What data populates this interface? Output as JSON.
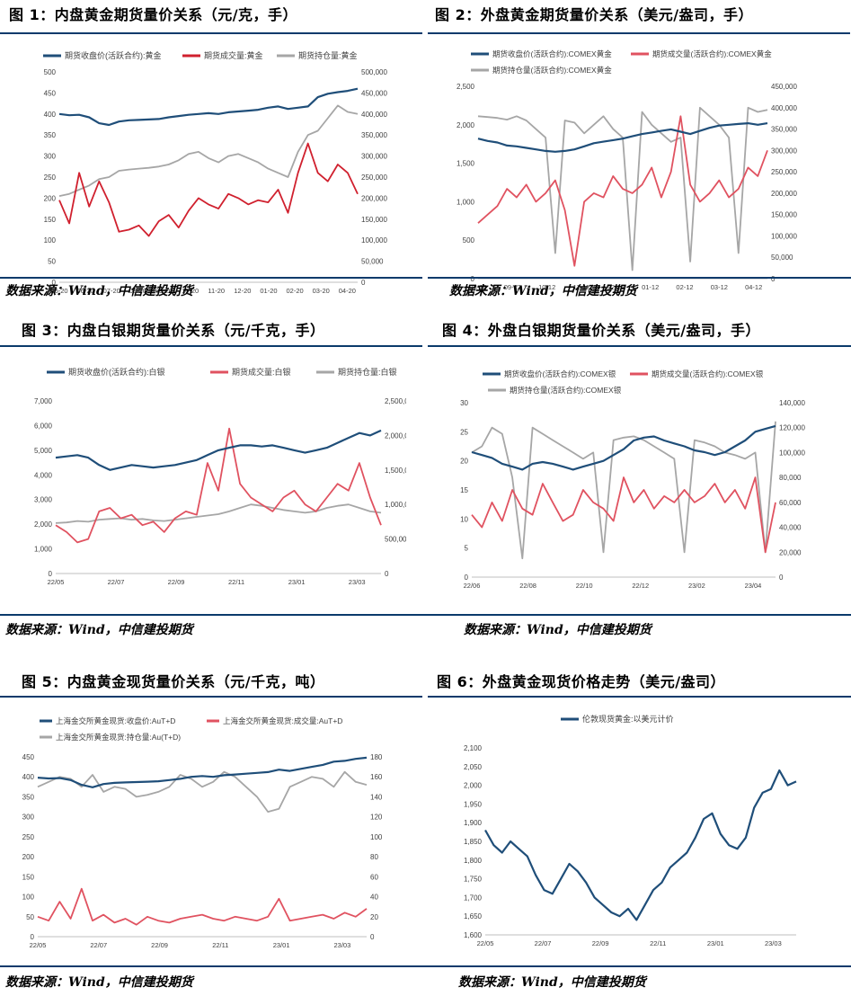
{
  "source_text": "数据来源：Wind，中信建投期货",
  "colors": {
    "navy": "#1f4e79",
    "red": "#d0202e",
    "red2": "#e05260",
    "gray": "#a6a6a6",
    "rule": "#0b3a6b"
  },
  "panels": [
    {
      "title": "图 1：内盘黄金期货量价关系（元/克，手）",
      "chart_data": {
        "type": "line",
        "x_ticks": [
          "05-20",
          "06-20",
          "07-20",
          "08-20",
          "09-20",
          "10-20",
          "11-20",
          "12-20",
          "01-20",
          "02-20",
          "03-20",
          "04-20"
        ],
        "y_left": {
          "min": 0,
          "max": 500,
          "ticks": [
            "0",
            "50",
            "100",
            "150",
            "200",
            "250",
            "300",
            "350",
            "400",
            "450",
            "500"
          ]
        },
        "y_right": {
          "min": 0,
          "max": 500000,
          "ticks": [
            "0",
            "50,000",
            "100,000",
            "150,000",
            "200,000",
            "250,000",
            "300,000",
            "350,000",
            "400,000",
            "450,000",
            "500,000"
          ]
        },
        "series": [
          {
            "name": "期货收盘价(活跃合约):黄金",
            "axis": "left",
            "color": "#1f4e79",
            "values": [
              400,
              397,
              398,
              392,
              378,
              374,
              382,
              385,
              386,
              387,
              388,
              392,
              395,
              398,
              400,
              402,
              400,
              404,
              406,
              408,
              410,
              415,
              418,
              412,
              415,
              418,
              440,
              448,
              452,
              455,
              460
            ]
          },
          {
            "name": "期货成交量:黄金",
            "axis": "right",
            "color": "#d0202e",
            "values": [
              195000,
              140000,
              260000,
              180000,
              240000,
              190000,
              120000,
              125000,
              135000,
              110000,
              145000,
              160000,
              130000,
              170000,
              200000,
              185000,
              175000,
              210000,
              200000,
              185000,
              195000,
              190000,
              220000,
              165000,
              260000,
              330000,
              260000,
              240000,
              280000,
              260000,
              210000
            ]
          },
          {
            "name": "期货持仓量:黄金",
            "axis": "right",
            "color": "#a6a6a6",
            "values": [
              205000,
              210000,
              220000,
              230000,
              245000,
              250000,
              265000,
              268000,
              270000,
              272000,
              275000,
              280000,
              290000,
              305000,
              310000,
              295000,
              285000,
              300000,
              305000,
              295000,
              285000,
              270000,
              260000,
              250000,
              310000,
              350000,
              360000,
              390000,
              420000,
              405000,
              400000
            ]
          }
        ]
      }
    },
    {
      "title": "图 2：外盘黄金期货量价关系（美元/盎司，手）",
      "chart_data": {
        "type": "line",
        "x_ticks": [
          "08-12",
          "09-12",
          "10-12",
          "11-12",
          "12-12",
          "01-12",
          "02-12",
          "03-12",
          "04-12"
        ],
        "y_left": {
          "min": 0,
          "max": 2500,
          "ticks": [
            "0",
            "500",
            "1,000",
            "1,500",
            "2,000",
            "2,500"
          ]
        },
        "y_right": {
          "min": 0,
          "max": 450000,
          "ticks": [
            "0",
            "50,000",
            "100,000",
            "150,000",
            "200,000",
            "250,000",
            "300,000",
            "350,000",
            "400,000",
            "450,000"
          ]
        },
        "series": [
          {
            "name": "期货收盘价(活跃合约):COMEX黄金",
            "axis": "left",
            "color": "#1f4e79",
            "values": [
              1820,
              1790,
              1770,
              1730,
              1720,
              1700,
              1680,
              1660,
              1650,
              1660,
              1680,
              1720,
              1760,
              1780,
              1800,
              1820,
              1850,
              1880,
              1900,
              1920,
              1940,
              1910,
              1880,
              1920,
              1960,
              1990,
              2000,
              2010,
              2020,
              2000,
              2020
            ]
          },
          {
            "name": "期货成交量(活跃合约):COMEX黄金",
            "axis": "right",
            "color": "#e05260",
            "values": [
              130000,
              150000,
              170000,
              210000,
              190000,
              220000,
              180000,
              200000,
              230000,
              160000,
              30000,
              180000,
              200000,
              190000,
              240000,
              210000,
              200000,
              220000,
              260000,
              190000,
              250000,
              380000,
              220000,
              180000,
              200000,
              230000,
              190000,
              210000,
              260000,
              240000,
              300000
            ]
          },
          {
            "name": "期货持仓量(活跃合约):COMEX黄金",
            "axis": "right",
            "color": "#a6a6a6",
            "values": [
              380000,
              378000,
              376000,
              372000,
              380000,
              370000,
              350000,
              330000,
              60000,
              370000,
              365000,
              340000,
              360000,
              380000,
              350000,
              330000,
              20000,
              390000,
              360000,
              340000,
              320000,
              330000,
              40000,
              400000,
              380000,
              360000,
              330000,
              60000,
              400000,
              390000,
              395000
            ]
          }
        ]
      }
    },
    {
      "title": "图 3：内盘白银期货量价关系（元/千克，手）",
      "chart_data": {
        "type": "line",
        "x_ticks": [
          "22/05",
          "22/07",
          "22/09",
          "22/11",
          "23/01",
          "23/03"
        ],
        "y_left": {
          "min": 0,
          "max": 7000,
          "ticks": [
            "0",
            "1,000",
            "2,000",
            "3,000",
            "4,000",
            "5,000",
            "6,000",
            "7,000"
          ]
        },
        "y_right": {
          "min": 0,
          "max": 2500000,
          "ticks": [
            "0",
            "500,000",
            "1,000,000",
            "1,500,000",
            "2,000,000",
            "2,500,000"
          ]
        },
        "series": [
          {
            "name": "期货收盘价(活跃合约):白银",
            "axis": "left",
            "color": "#1f4e79",
            "values": [
              4700,
              4750,
              4800,
              4700,
              4400,
              4200,
              4300,
              4400,
              4350,
              4300,
              4350,
              4400,
              4500,
              4600,
              4800,
              5000,
              5100,
              5200,
              5200,
              5150,
              5200,
              5100,
              5000,
              4900,
              5000,
              5100,
              5300,
              5500,
              5700,
              5600,
              5800
            ]
          },
          {
            "name": "期货成交量:白银",
            "axis": "right",
            "color": "#e05260",
            "values": [
              700000,
              600000,
              450000,
              500000,
              900000,
              950000,
              800000,
              850000,
              700000,
              750000,
              600000,
              800000,
              900000,
              850000,
              1600000,
              1200000,
              2100000,
              1300000,
              1100000,
              1000000,
              900000,
              1100000,
              1200000,
              1000000,
              900000,
              1100000,
              1300000,
              1200000,
              1600000,
              1100000,
              700000
            ]
          },
          {
            "name": "期货持仓量:白银",
            "axis": "right",
            "color": "#a6a6a6",
            "values": [
              730000,
              740000,
              760000,
              750000,
              780000,
              790000,
              800000,
              780000,
              790000,
              770000,
              760000,
              780000,
              800000,
              820000,
              840000,
              860000,
              900000,
              950000,
              1000000,
              980000,
              950000,
              920000,
              900000,
              880000,
              900000,
              950000,
              980000,
              1000000,
              950000,
              900000,
              880000
            ]
          }
        ]
      }
    },
    {
      "title": "图 4：外盘白银期货量价关系（美元/盎司，手）",
      "chart_data": {
        "type": "line",
        "x_ticks": [
          "22/06",
          "22/08",
          "22/10",
          "22/12",
          "23/02",
          "23/04"
        ],
        "y_left": {
          "min": 0,
          "max": 30,
          "ticks": [
            "0",
            "5",
            "10",
            "15",
            "20",
            "25",
            "30"
          ]
        },
        "y_right": {
          "min": 0,
          "max": 140000,
          "ticks": [
            "0",
            "20,000",
            "40,000",
            "60,000",
            "80,000",
            "100,000",
            "120,000",
            "140,000"
          ]
        },
        "series": [
          {
            "name": "期货收盘价(活跃合约):COMEX银",
            "axis": "left",
            "color": "#1f4e79",
            "values": [
              21.5,
              21,
              20.5,
              19.5,
              19,
              18.5,
              19.5,
              19.8,
              19.5,
              19,
              18.5,
              19,
              19.5,
              20,
              21,
              22,
              23.5,
              24,
              24.2,
              23.5,
              23,
              22.5,
              21.8,
              21.5,
              21,
              21.5,
              22.5,
              23.5,
              25,
              25.5,
              26
            ]
          },
          {
            "name": "期货成交量(活跃合约):COMEX银",
            "axis": "right",
            "color": "#e05260",
            "values": [
              50000,
              40000,
              60000,
              45000,
              70000,
              55000,
              50000,
              75000,
              60000,
              45000,
              50000,
              70000,
              60000,
              55000,
              45000,
              80000,
              60000,
              70000,
              55000,
              65000,
              60000,
              70000,
              60000,
              65000,
              75000,
              60000,
              70000,
              55000,
              80000,
              20000,
              60000
            ]
          },
          {
            "name": "期货持仓量(活跃合约):COMEX银",
            "axis": "right",
            "color": "#a6a6a6",
            "values": [
              100000,
              105000,
              120000,
              115000,
              80000,
              15000,
              120000,
              115000,
              110000,
              105000,
              100000,
              95000,
              100000,
              20000,
              110000,
              112000,
              113000,
              110000,
              105000,
              100000,
              95000,
              20000,
              110000,
              108000,
              105000,
              100000,
              98000,
              95000,
              100000,
              20000,
              125000
            ]
          }
        ]
      }
    },
    {
      "title": "图 5：内盘黄金现货量价关系（元/千克，吨）",
      "chart_data": {
        "type": "line",
        "x_ticks": [
          "22/05",
          "22/07",
          "22/09",
          "22/11",
          "23/01",
          "23/03"
        ],
        "y_left": {
          "min": 0,
          "max": 450,
          "ticks": [
            "0",
            "50",
            "100",
            "150",
            "200",
            "250",
            "300",
            "350",
            "400",
            "450"
          ]
        },
        "y_right": {
          "min": 0,
          "max": 180,
          "ticks": [
            "0",
            "20",
            "40",
            "60",
            "80",
            "100",
            "120",
            "140",
            "160",
            "180"
          ]
        },
        "series": [
          {
            "name": "上海金交所黄金现货:收盘价:AuT+D",
            "axis": "left",
            "color": "#1f4e79",
            "values": [
              398,
              396,
              397,
              392,
              380,
              374,
              382,
              385,
              386,
              387,
              388,
              389,
              392,
              395,
              400,
              402,
              400,
              404,
              406,
              408,
              410,
              412,
              418,
              415,
              420,
              425,
              430,
              438,
              440,
              445,
              448
            ]
          },
          {
            "name": "上海金交所黄金现货:成交量:AuT+D",
            "axis": "right",
            "color": "#e05260",
            "values": [
              20,
              16,
              35,
              18,
              48,
              16,
              22,
              14,
              18,
              12,
              20,
              16,
              14,
              18,
              20,
              22,
              18,
              16,
              20,
              18,
              16,
              20,
              38,
              16,
              18,
              20,
              22,
              18,
              24,
              20,
              28
            ]
          },
          {
            "name": "上海金交所黄金现货:持仓量:Au(T+D)",
            "axis": "right",
            "color": "#a6a6a6",
            "values": [
              150,
              155,
              160,
              158,
              150,
              162,
              145,
              150,
              148,
              140,
              142,
              145,
              150,
              162,
              158,
              150,
              155,
              165,
              160,
              150,
              140,
              125,
              128,
              150,
              155,
              160,
              158,
              150,
              165,
              155,
              152
            ]
          }
        ]
      }
    },
    {
      "title": "图 6：外盘黄金现货价格走势（美元/盎司）",
      "chart_data": {
        "type": "line",
        "x_ticks": [
          "22/05",
          "22/07",
          "22/09",
          "22/11",
          "23/01",
          "23/03"
        ],
        "y_left": {
          "min": 1600,
          "max": 2100,
          "ticks": [
            "1,600",
            "1,650",
            "1,700",
            "1,750",
            "1,800",
            "1,850",
            "1,900",
            "1,950",
            "2,000",
            "2,050",
            "2,100"
          ]
        },
        "series": [
          {
            "name": "伦敦现货黄金:以美元计价",
            "axis": "left",
            "color": "#1f4e79",
            "values": [
              1880,
              1840,
              1820,
              1850,
              1830,
              1810,
              1760,
              1720,
              1710,
              1750,
              1790,
              1770,
              1740,
              1700,
              1680,
              1660,
              1650,
              1670,
              1640,
              1680,
              1720,
              1740,
              1780,
              1800,
              1820,
              1860,
              1910,
              1925,
              1870,
              1840,
              1830,
              1860,
              1940,
              1980,
              1990,
              2040,
              2000,
              2010
            ]
          }
        ]
      }
    }
  ]
}
